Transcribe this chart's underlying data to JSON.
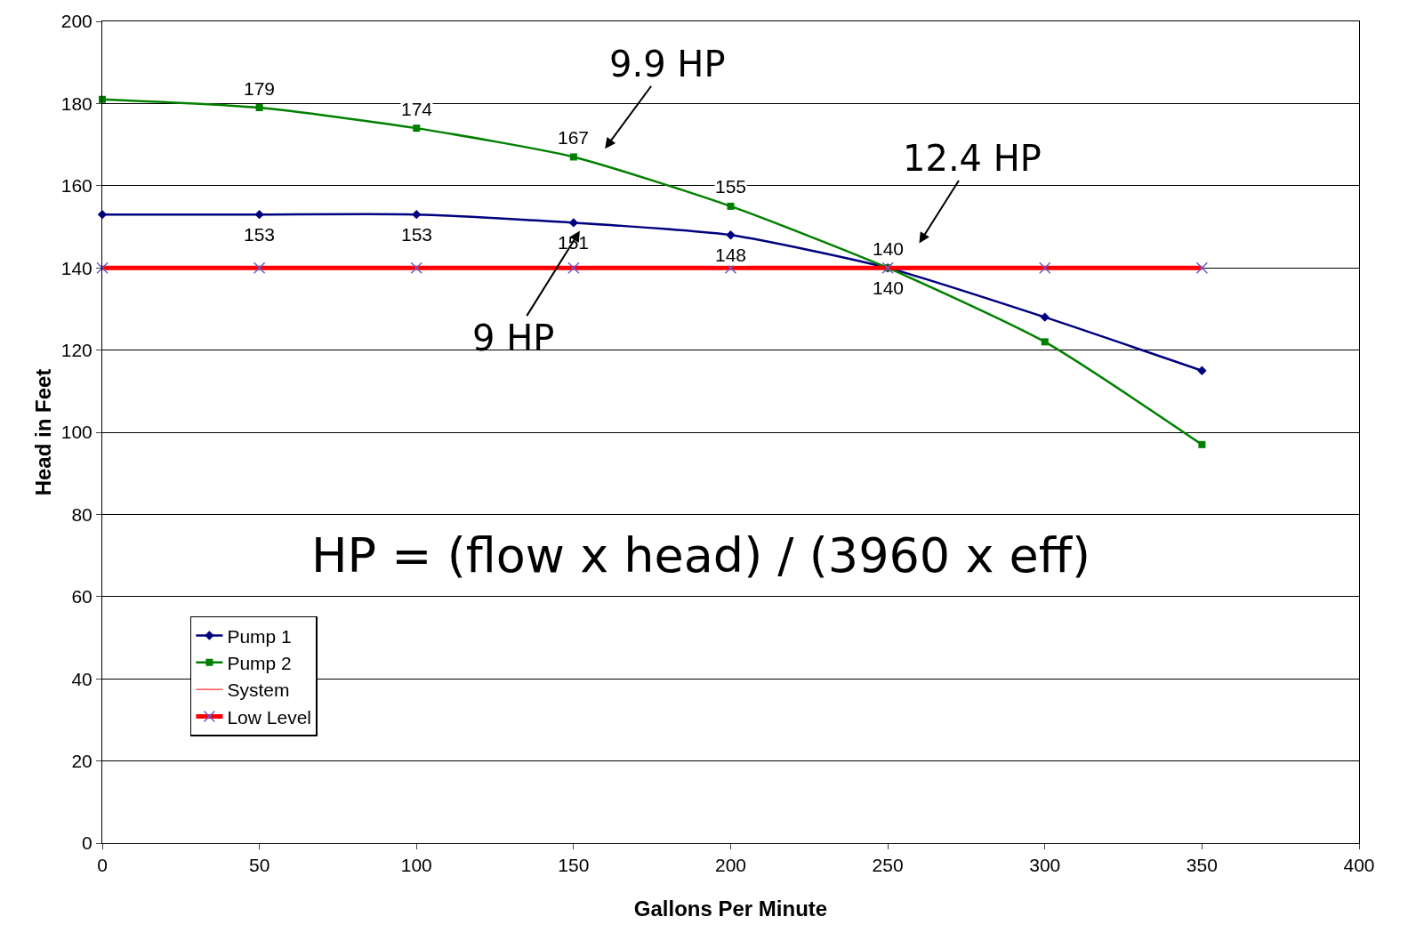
{
  "chart_data": {
    "type": "line",
    "xlabel": "Gallons Per Minute",
    "ylabel": "Head in Feet",
    "x": [
      0,
      50,
      100,
      150,
      200,
      250,
      300,
      350
    ],
    "series": [
      {
        "name": "Pump 1",
        "color": "#000080",
        "marker": "diamond",
        "values": [
          153,
          153,
          153,
          151,
          148,
          140,
          128,
          115
        ],
        "value_labels": [
          null,
          "153",
          "153",
          "151",
          "148",
          "140",
          null,
          null
        ]
      },
      {
        "name": "Pump 2",
        "color": "#008000",
        "marker": "square",
        "values": [
          181,
          179,
          174,
          167,
          155,
          140,
          122,
          97
        ],
        "value_labels": [
          null,
          "179",
          "174",
          "167",
          "155",
          "140",
          null,
          null
        ]
      },
      {
        "name": "System",
        "color": "#ff0000",
        "marker": "none",
        "values": [
          null,
          null,
          null,
          null,
          null,
          null,
          null,
          null
        ]
      },
      {
        "name": "Low Level",
        "color": "#ff0000",
        "marker": "cross",
        "values": [
          140,
          140,
          140,
          140,
          140,
          140,
          140,
          140
        ]
      }
    ],
    "xlim": [
      0,
      400
    ],
    "xticks": [
      0,
      50,
      100,
      150,
      200,
      250,
      300,
      350,
      400
    ],
    "ylim": [
      0,
      200
    ],
    "yticks": [
      0,
      20,
      40,
      60,
      80,
      100,
      120,
      140,
      160,
      180,
      200
    ],
    "grid": "y",
    "legend": "bottom left",
    "line_style": "solid",
    "annotations": [
      "9.9 HP",
      "12.4 HP",
      "9 HP",
      "HP = (flow x head) / (3960 x eff)"
    ]
  }
}
